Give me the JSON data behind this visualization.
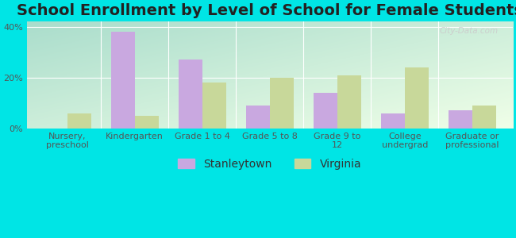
{
  "title": "School Enrollment by Level of School for Female Students",
  "categories": [
    "Nursery,\npreschool",
    "Kindergarten",
    "Grade 1 to 4",
    "Grade 5 to 8",
    "Grade 9 to\n12",
    "College\nundergrad",
    "Graduate or\nprofessional"
  ],
  "stanleytown": [
    0,
    38,
    27,
    9,
    14,
    6,
    7
  ],
  "virginia": [
    6,
    5,
    18,
    20,
    21,
    24,
    9
  ],
  "stanleytown_color": "#c9a8e0",
  "virginia_color": "#c8d89a",
  "bar_width": 0.35,
  "ylim": [
    0,
    42
  ],
  "yticks": [
    0,
    20,
    40
  ],
  "ytick_labels": [
    "0%",
    "20%",
    "40%"
  ],
  "legend_stanleytown": "Stanleytown",
  "legend_virginia": "Virginia",
  "background_color": "#00e5e5",
  "gradient_top_left": "#aaddcc",
  "gradient_bottom_right": "#f0ffe8",
  "title_fontsize": 14,
  "tick_fontsize": 8,
  "legend_fontsize": 10,
  "watermark": "City-Data.com"
}
